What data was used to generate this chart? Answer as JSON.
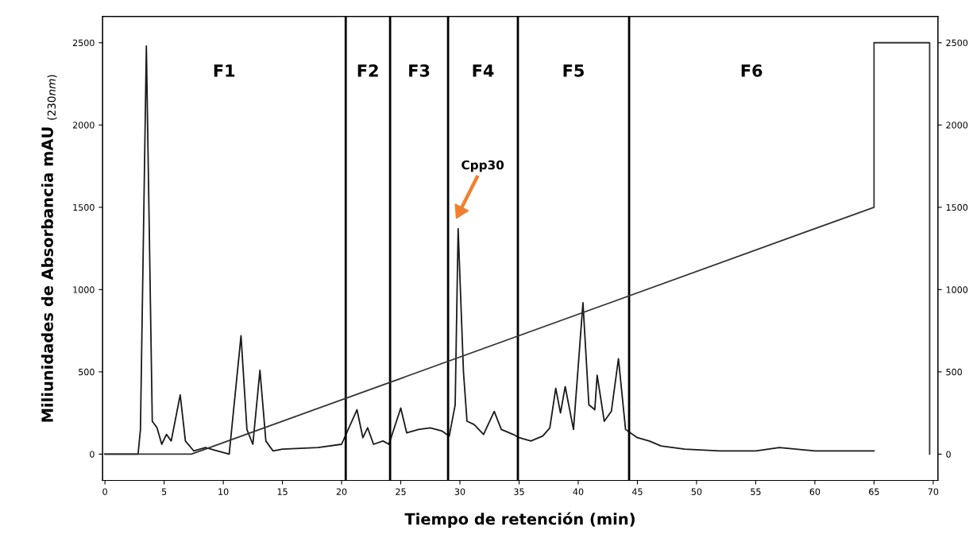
{
  "chart_data": {
    "type": "line",
    "xlabel": "Tiempo de retención (min)",
    "ylabel": "Miliunidades de Absorbancia mAU $_{(230nm)}$",
    "xlim": [
      -0.2,
      70.4
    ],
    "xticks": [
      0,
      5,
      10,
      15,
      20,
      25,
      30,
      35,
      40,
      45,
      50,
      55,
      60,
      65,
      70
    ],
    "ylim": [
      -160,
      2660
    ],
    "yticks": [
      0,
      500,
      1000,
      1500,
      2000,
      2500
    ],
    "y2lim": [
      -160,
      2660
    ],
    "y2ticks": [
      0,
      500,
      1000,
      1500,
      2000,
      2500
    ],
    "grid": false,
    "marker": "none",
    "line_style": "solid",
    "series": [
      {
        "color": "#1a1a1a",
        "x": [
          0,
          2.8,
          3.0,
          3.5,
          4.0,
          4.4,
          4.8,
          5.2,
          5.6,
          6.36,
          6.8,
          7.5,
          8.5,
          9.5,
          10.5,
          11.5,
          12.0,
          12.5,
          13.1,
          13.6,
          14.2,
          15,
          18,
          20,
          21.3,
          21.8,
          22.2,
          22.7,
          23.5,
          24,
          25.0,
          25.5,
          26.5,
          27.5,
          28.5,
          29.1,
          29.6,
          29.85,
          30.3,
          30.6,
          31.2,
          32,
          32.9,
          33.5,
          34.5,
          35,
          36,
          37,
          37.6,
          38.1,
          38.5,
          38.9,
          39.6,
          40.4,
          40.9,
          41.4,
          41.6,
          42.2,
          42.8,
          43.4,
          44,
          45,
          46,
          47,
          49,
          52,
          55,
          57,
          60,
          65
        ],
        "values": [
          0,
          0,
          150,
          2480,
          200,
          160,
          60,
          120,
          80,
          360,
          80,
          20,
          40,
          20,
          0,
          720,
          150,
          60,
          510,
          80,
          20,
          30,
          40,
          60,
          270,
          100,
          160,
          60,
          80,
          60,
          280,
          130,
          150,
          160,
          140,
          110,
          300,
          1370,
          500,
          200,
          180,
          120,
          260,
          150,
          120,
          100,
          80,
          110,
          160,
          400,
          250,
          410,
          150,
          920,
          300,
          270,
          480,
          200,
          260,
          580,
          150,
          100,
          80,
          50,
          30,
          20,
          20,
          40,
          20,
          20
        ]
      },
      {
        "color": "#333333",
        "axis": "y2",
        "x": [
          0,
          7.3,
          65,
          65,
          69.7,
          69.7
        ],
        "values": [
          0,
          0,
          1500,
          2500,
          2500,
          0
        ]
      }
    ],
    "ref_lines": [
      {
        "axis": "x",
        "value": 20.35,
        "color": "#000000"
      },
      {
        "axis": "x",
        "value": 24.1,
        "color": "#000000"
      },
      {
        "axis": "x",
        "value": 29.0,
        "color": "#000000"
      },
      {
        "axis": "x",
        "value": 34.9,
        "color": "#000000"
      },
      {
        "axis": "x",
        "value": 44.3,
        "color": "#000000"
      }
    ],
    "annotations": [
      "F1",
      "F2",
      "F3",
      "F4",
      "F5",
      "F6",
      "Cpp30"
    ]
  }
}
